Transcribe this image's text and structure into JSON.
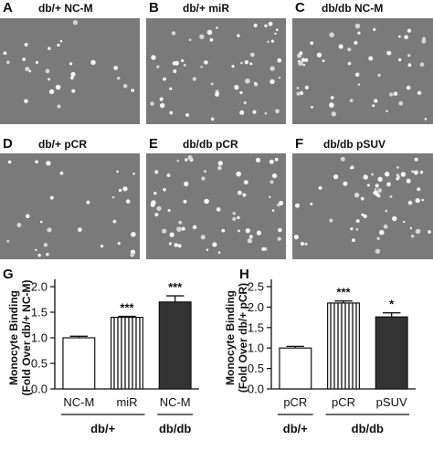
{
  "panels": [
    {
      "letter": "A",
      "title": "db/+ NC-M"
    },
    {
      "letter": "B",
      "title": "db/+ miR"
    },
    {
      "letter": "C",
      "title": "db/db NC-M"
    },
    {
      "letter": "D",
      "title": "db/+ pCR"
    },
    {
      "letter": "E",
      "title": "db/db pCR"
    },
    {
      "letter": "F",
      "title": "db/db pSUV"
    }
  ],
  "micro_cells": [
    26,
    55,
    52,
    28,
    60,
    58
  ],
  "chart_data": [
    {
      "letter": "G",
      "type": "bar",
      "ylabel_line1": "Monocyte Binding",
      "ylabel_line2": "(Fold Over db/+ NC-M)",
      "ylim": [
        0,
        2.0
      ],
      "yticks": [
        "0.0",
        "0.5",
        "1.0",
        "1.5",
        "2.0"
      ],
      "bars": [
        {
          "label": "NC-M",
          "value": 1.0,
          "error": 0.03,
          "fill": "#ffffff",
          "pattern": "none",
          "sig": ""
        },
        {
          "label": "miR",
          "value": 1.4,
          "error": 0.02,
          "fill": "#ffffff",
          "pattern": "stripes",
          "sig": "***"
        },
        {
          "label": "NC-M",
          "value": 1.7,
          "error": 0.12,
          "fill": "#333333",
          "pattern": "none",
          "sig": "***"
        }
      ],
      "groups": [
        {
          "label": "db/+",
          "bars": [
            0,
            1
          ]
        },
        {
          "label": "db/db",
          "bars": [
            2
          ]
        }
      ]
    },
    {
      "letter": "H",
      "type": "bar",
      "ylabel_line1": "Monocyte Binding",
      "ylabel_line2": "(Fold Over db/+ pCR)",
      "ylim": [
        0,
        2.5
      ],
      "yticks": [
        "0.0",
        "0.5",
        "1.0",
        "1.5",
        "2.0",
        "2.5"
      ],
      "bars": [
        {
          "label": "pCR",
          "value": 1.0,
          "error": 0.04,
          "fill": "#ffffff",
          "pattern": "none",
          "sig": ""
        },
        {
          "label": "pCR",
          "value": 2.1,
          "error": 0.05,
          "fill": "#ffffff",
          "pattern": "stripes",
          "sig": "***"
        },
        {
          "label": "pSUV",
          "value": 1.76,
          "error": 0.1,
          "fill": "#333333",
          "pattern": "none",
          "sig": "*"
        }
      ],
      "groups": [
        {
          "label": "db/+",
          "bars": [
            0
          ]
        },
        {
          "label": "db/db",
          "bars": [
            1,
            2
          ]
        }
      ]
    }
  ]
}
